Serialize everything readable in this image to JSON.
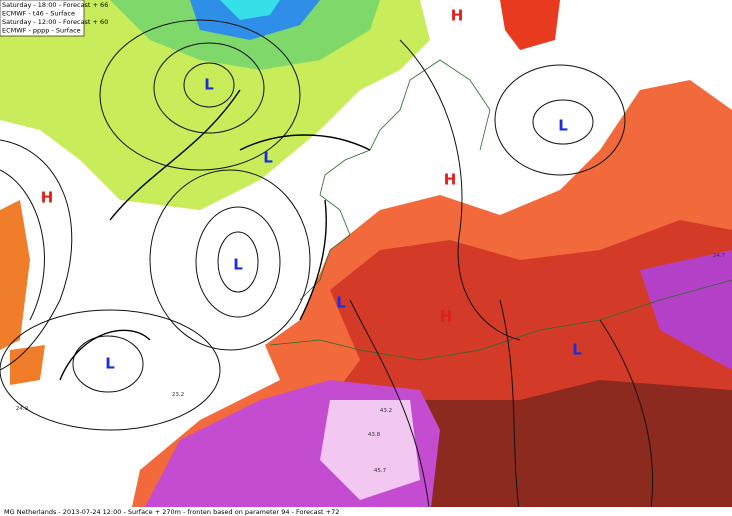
{
  "header": {
    "lines": [
      "Saturday - 18:00 - Forecast + 66",
      "ECMWF - t46 - Surface",
      "Saturday - 12:00 - Forecast + 60",
      "ECMWF - pppp - Surface"
    ]
  },
  "footer": "MG Netherlands - 2013-07-24 12:00 - Surface + 270m - fronten based on parameter 94 - Forecast +72",
  "pressure_systems": [
    {
      "label": "L"
    },
    {
      "label": "L"
    },
    {
      "label": "L"
    },
    {
      "label": "L"
    },
    {
      "label": "L"
    },
    {
      "label": "L"
    },
    {
      "label": "L"
    },
    {
      "label": "H"
    },
    {
      "label": "H"
    },
    {
      "label": "H"
    },
    {
      "label": "H"
    }
  ],
  "contour_labels": [
    "24.9",
    "23.2",
    "43.8",
    "45.7",
    "43.2",
    "24.7"
  ]
}
